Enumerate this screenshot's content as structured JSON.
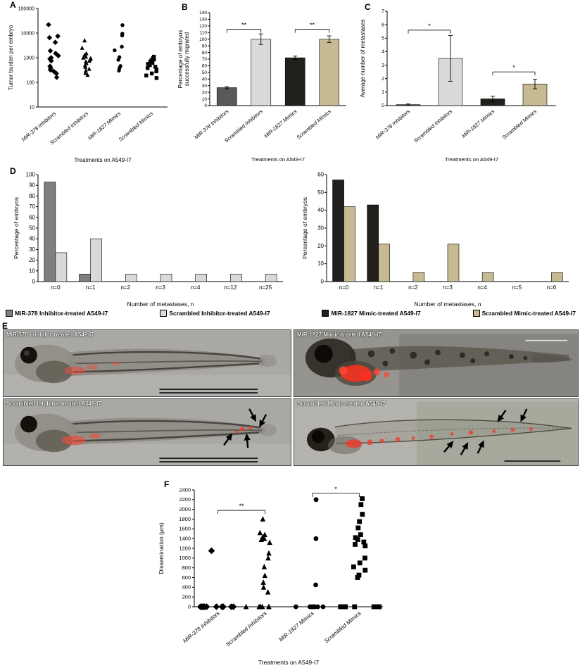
{
  "panel_labels": {
    "A": "A",
    "B": "B",
    "C": "C",
    "D": "D",
    "E": "E",
    "F": "F"
  },
  "colors": {
    "mir378_bar": "#595959",
    "scrambled_inhibitor_bar": "#d9d9d9",
    "mir1827_bar": "#21201c",
    "scrambled_mimic_bar": "#c5ba92",
    "marker": "#000000",
    "red_fluorescence": "#f03a2c"
  },
  "chart_data": [
    {
      "id": "A",
      "type": "scatter",
      "yscale": "log",
      "ylabel": "Tumor burden per embryo",
      "xlabel": "Treatments on A549-I7",
      "categories": [
        "MiR-378 Inhibitors",
        "Scrambled Inhibitors",
        "MiR-1827 Mimics",
        "Scrambled Mimics"
      ],
      "markers": [
        "diamond",
        "triangle",
        "circle",
        "square"
      ],
      "ylim": [
        10,
        100000
      ],
      "yticks": [
        10,
        100,
        1000,
        10000,
        100000
      ],
      "series": [
        {
          "name": "MiR-378 Inhibitors",
          "values": [
            22000,
            7500,
            6500,
            4200,
            1900,
            1500,
            1200,
            1000,
            900,
            750,
            450,
            380,
            320,
            280,
            230,
            160
          ]
        },
        {
          "name": "Scrambled Inhibitors",
          "values": [
            5000,
            2500,
            1500,
            1300,
            1100,
            1000,
            950,
            850,
            750,
            700,
            600,
            500,
            420,
            350,
            300,
            240,
            200
          ]
        },
        {
          "name": "MiR-1827 Mimics",
          "values": [
            21000,
            9500,
            8000,
            2800,
            2000,
            1050,
            820,
            460,
            380,
            300
          ]
        },
        {
          "name": "Scrambled Mimics",
          "values": [
            1100,
            950,
            850,
            780,
            700,
            620,
            560,
            500,
            430,
            380,
            330,
            280,
            230,
            190,
            150
          ]
        }
      ]
    },
    {
      "id": "B",
      "type": "bar",
      "ylabel": "Percentage of embryos successfully migrated",
      "ylabel_lines": [
        "Percentage of embryos",
        "successfully migrated"
      ],
      "xlabel": "Treatments on A549-I7",
      "categories": [
        "MiR-378 Inhibitors",
        "Scrambled Inhibitors",
        "MiR-1827 Mimics",
        "Scrambled Mimics"
      ],
      "values": [
        27,
        100,
        72,
        100
      ],
      "errors": [
        1.5,
        8,
        2.5,
        5
      ],
      "colors": [
        "#595959",
        "#d9d9d9",
        "#21201c",
        "#c5ba92"
      ],
      "ylim": [
        0,
        140
      ],
      "ytick_step": 10,
      "brackets": [
        {
          "from": 0,
          "to": 1,
          "y": 115,
          "label": "**"
        },
        {
          "from": 2,
          "to": 3,
          "y": 115,
          "label": "**"
        }
      ]
    },
    {
      "id": "C",
      "type": "bar",
      "ylabel": "Average number of metastases",
      "ylabel_lines": [
        "Average number of metastases"
      ],
      "xlabel": "Treatments on A549-I7",
      "categories": [
        "MiR-378 Inhibitors",
        "Scrambled Inhibitors",
        "MiR-1827 Mimics",
        "Scrambled Mimics"
      ],
      "values": [
        0.07,
        3.5,
        0.5,
        1.6
      ],
      "errors": [
        0.05,
        1.7,
        0.2,
        0.35
      ],
      "colors": [
        "#595959",
        "#d9d9d9",
        "#21201c",
        "#c5ba92"
      ],
      "ylim": [
        0,
        7
      ],
      "ytick_step": 1,
      "brackets": [
        {
          "from": 0,
          "to": 1,
          "y": 5.6,
          "label": "*"
        },
        {
          "from": 2,
          "to": 3,
          "y": 2.5,
          "label": "*"
        }
      ]
    },
    {
      "id": "D-left",
      "type": "grouped-bar",
      "ylabel": "Percentage of embryos",
      "xlabel": "Number  of metastases, n",
      "categories": [
        "n=0",
        "n=1",
        "n=2",
        "n=3",
        "n=4",
        "n=12",
        "n=25"
      ],
      "ylim": [
        0,
        100
      ],
      "ytick_step": 10,
      "series": [
        {
          "name": "MiR-378 Inhibitor-treated A549-I7",
          "color": "#7f7f7f",
          "values": [
            93,
            7,
            0,
            0,
            0,
            0,
            0
          ]
        },
        {
          "name": "Scrambled Inhibitor-treated A549-I7",
          "color": "#d9d9d9",
          "values": [
            27,
            40,
            7,
            7,
            7,
            7,
            7
          ]
        }
      ]
    },
    {
      "id": "D-right",
      "type": "grouped-bar",
      "ylabel": "Percentage of embryos",
      "xlabel": "Number  of  metastases, n",
      "categories": [
        "n=0",
        "n=1",
        "n=2",
        "n=3",
        "n=4",
        "n=5",
        "n=6"
      ],
      "ylim": [
        0,
        60
      ],
      "ytick_step": 10,
      "series": [
        {
          "name": "MiR-1827 Mimic-treated A549-I7",
          "color": "#21201c",
          "values": [
            57,
            43,
            0,
            0,
            0,
            0,
            0
          ]
        },
        {
          "name": "Scrambled Mimic-treated A549-I7",
          "color": "#c5ba92",
          "values": [
            42,
            21,
            5,
            21,
            5,
            0,
            5
          ]
        }
      ]
    },
    {
      "id": "F",
      "type": "scatter",
      "yscale": "linear",
      "ylabel": "Dissemination (μm)",
      "xlabel": "Treatments on A549-I7",
      "categories": [
        "MiR-378 Inhibitors",
        "Scrambled Inhibitors",
        "MiR-1827 Mimics",
        "Scrambled Mimics"
      ],
      "markers": [
        "diamond",
        "triangle",
        "circle",
        "square"
      ],
      "ylim": [
        0,
        2400
      ],
      "ytick_step": 200,
      "series": [
        {
          "name": "MiR-378 Inhibitors",
          "values": [
            1150,
            0,
            0,
            0,
            0,
            0,
            0,
            0,
            0,
            0,
            0,
            0,
            0,
            0
          ]
        },
        {
          "name": "Scrambled Inhibitors",
          "values": [
            1800,
            1520,
            1480,
            1430,
            1400,
            1380,
            1320,
            1100,
            1000,
            820,
            640,
            500,
            400,
            300,
            0,
            0,
            0,
            0,
            0,
            0,
            0
          ]
        },
        {
          "name": "MiR-1827 Mimics",
          "values": [
            2200,
            1400,
            450,
            0,
            0,
            0,
            0,
            0,
            0,
            0,
            0,
            0
          ]
        },
        {
          "name": "Scrambled Mimics",
          "values": [
            2220,
            2100,
            1900,
            1750,
            1620,
            1480,
            1420,
            1380,
            1330,
            1280,
            1250,
            1000,
            900,
            820,
            750,
            650,
            600,
            0,
            0,
            0,
            0,
            0,
            0,
            0,
            0
          ]
        }
      ],
      "brackets": [
        {
          "from": 0,
          "to": 1,
          "y": 1980,
          "label": "**"
        },
        {
          "from": 2,
          "to": 3,
          "y": 2330,
          "label": "*"
        }
      ]
    }
  ],
  "legendD": {
    "items": [
      {
        "label": "MiR-378 Inhibitor-treated A549-I7",
        "color": "#7f7f7f"
      },
      {
        "label": "Scrambled Inhibitor-treated A549-I7",
        "color": "#d9d9d9"
      },
      {
        "label": "MiR-1827 Mimic-treated A549-I7",
        "color": "#21201c"
      },
      {
        "label": "Scrambled Mimic-treated A549-I7",
        "color": "#c5ba92"
      }
    ]
  },
  "panelE": {
    "images": [
      {
        "label": "MiR-378 Inhibitor-treated A549-I7"
      },
      {
        "label": "MiR-1827 Mimic-treated A549-I7"
      },
      {
        "label": "Scrambled Inhibitor-treated A549-I7"
      },
      {
        "label": "Scrambled Mimic-treated A549-I7"
      }
    ]
  }
}
